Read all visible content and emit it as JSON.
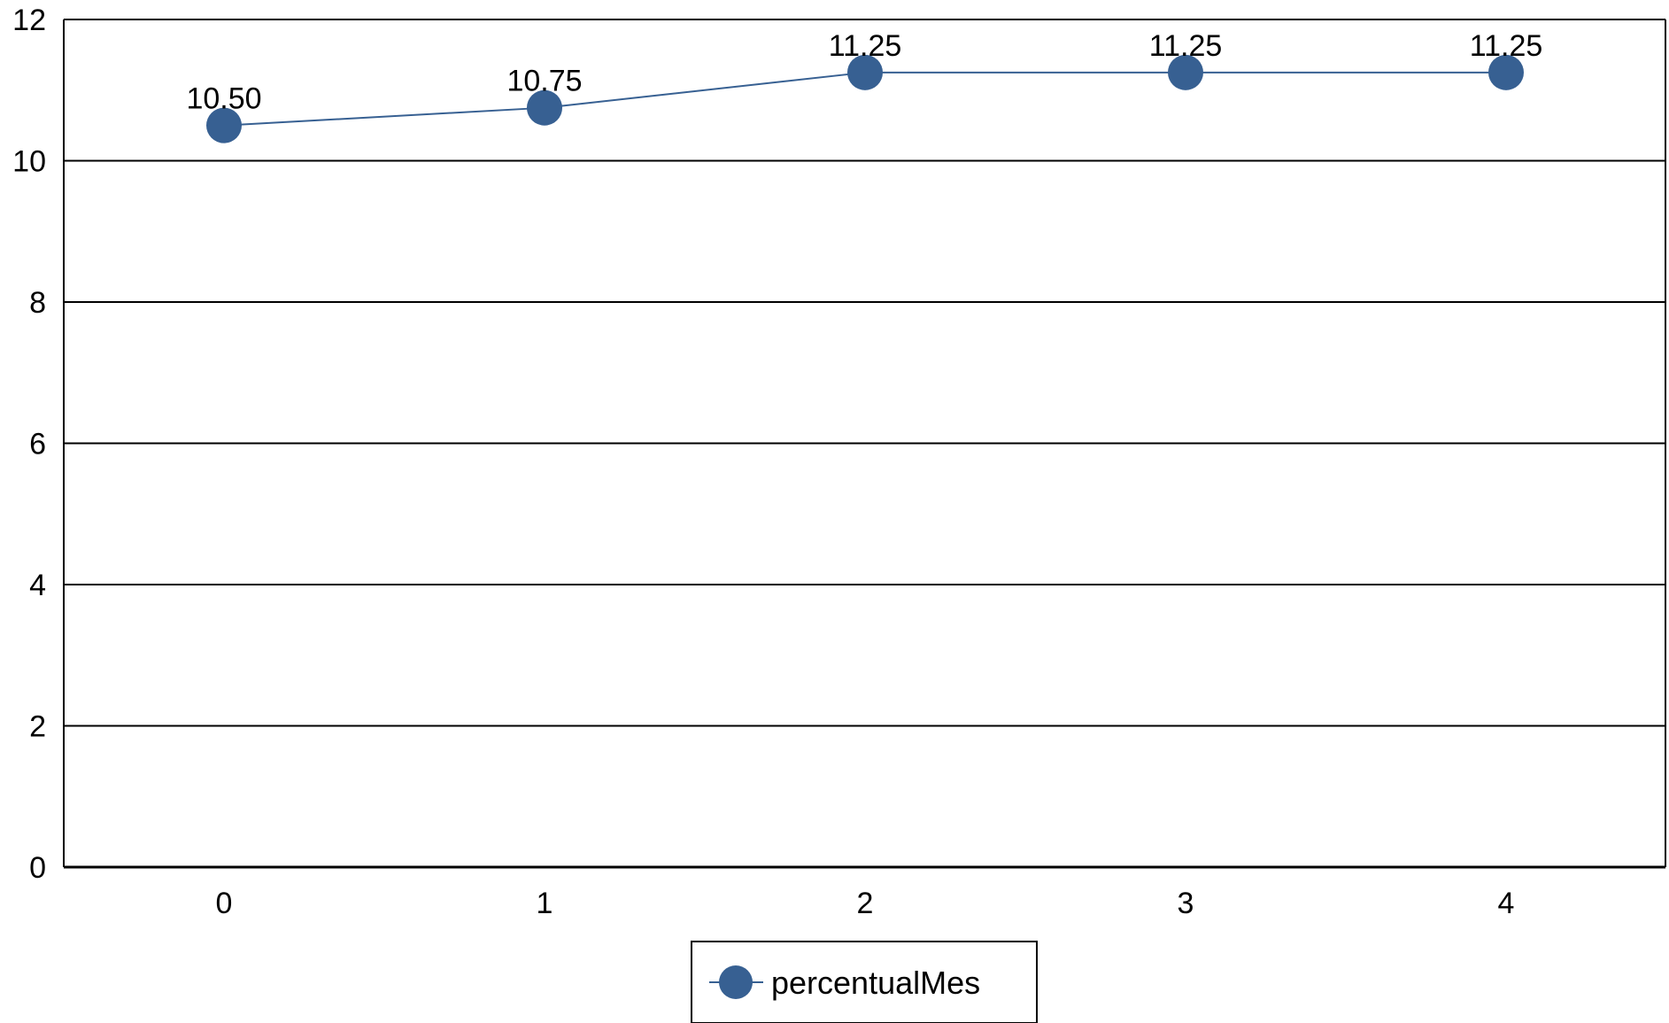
{
  "chart_data": {
    "type": "line",
    "title": "",
    "xlabel": "",
    "ylabel": "",
    "x": [
      0,
      1,
      2,
      3,
      4
    ],
    "x_tick_labels": [
      "0",
      "1",
      "2",
      "3",
      "4"
    ],
    "y_tick_labels": [
      "0",
      "2",
      "4",
      "6",
      "8",
      "10",
      "12"
    ],
    "ylim": [
      0,
      12
    ],
    "y_ticks": [
      0,
      2,
      4,
      6,
      8,
      10,
      12
    ],
    "grid": true,
    "legend_position": "bottom",
    "series": [
      {
        "name": "percentualMes",
        "values": [
          10.5,
          10.75,
          11.25,
          11.25,
          11.25
        ],
        "data_labels": [
          "10.50",
          "10.75",
          "11.25",
          "11.25",
          "11.25"
        ],
        "color": "#376092",
        "marker": "circle"
      }
    ]
  }
}
